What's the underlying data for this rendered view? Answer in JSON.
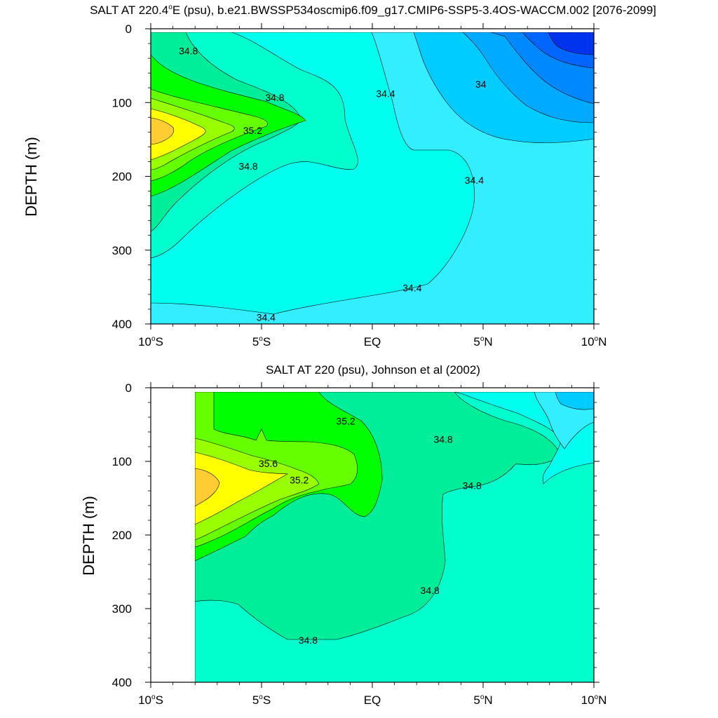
{
  "chart_data": [
    {
      "type": "contour",
      "title_prefix": "SALT AT 220.4",
      "title_sup": "o",
      "title_suffix": "E (psu), b.e21.BWSSP534oscmip6.f09_g17.CMIP6-SSP5-3.4OS-WACCM.002 [2076-2099]",
      "ylabel": "DEPTH (m)",
      "xlabel": "",
      "xlim": [
        -10,
        10
      ],
      "ylim": [
        400,
        0
      ],
      "x_ticks": [
        {
          "value": -10,
          "num": "10",
          "sup": "o",
          "hem": "S"
        },
        {
          "value": -5,
          "num": "5",
          "sup": "o",
          "hem": "S"
        },
        {
          "value": 0,
          "num": "EQ",
          "sup": "",
          "hem": ""
        },
        {
          "value": 5,
          "num": "5",
          "sup": "o",
          "hem": "N"
        },
        {
          "value": 10,
          "num": "10",
          "sup": "o",
          "hem": "N"
        }
      ],
      "y_ticks": [
        "0",
        "100",
        "200",
        "300",
        "400"
      ],
      "y_tick_values": [
        0,
        100,
        200,
        300,
        400
      ],
      "contour_interval": 0.2,
      "fill_colors": {
        "33.2": "#0033ee",
        "33.4": "#0066ff",
        "33.6": "#0088ff",
        "33.8": "#00aaff",
        "34.0": "#00ccff",
        "34.2": "#33eeff",
        "34.4": "#00ffee",
        "34.6": "#00ffcc",
        "34.8": "#00ee99",
        "35.0": "#00ff00",
        "35.2": "#66ff00",
        "35.4": "#99ff00",
        "35.6": "#ffff00",
        "35.8": "#ffcc33"
      },
      "contour_labels": [
        {
          "text": "34.8",
          "x": -8.3,
          "y": 30
        },
        {
          "text": "34.8",
          "x": -4.4,
          "y": 93
        },
        {
          "text": "35.2",
          "x": -5.4,
          "y": 138
        },
        {
          "text": "34.8",
          "x": -5.6,
          "y": 186
        },
        {
          "text": "34.4",
          "x": 0.6,
          "y": 88
        },
        {
          "text": "34",
          "x": 4.9,
          "y": 75
        },
        {
          "text": "34.4",
          "x": 4.6,
          "y": 205
        },
        {
          "text": "34.4",
          "x": 1.8,
          "y": 351
        },
        {
          "text": "34.4",
          "x": -4.8,
          "y": 391
        }
      ]
    },
    {
      "type": "contour",
      "title_prefix": "SALT AT 220 (psu), Johnson et al (2002)",
      "title_sup": "",
      "title_suffix": "",
      "ylabel": "DEPTH (m)",
      "xlabel": "",
      "xlim": [
        -10,
        10
      ],
      "ylim": [
        400,
        0
      ],
      "x_ticks": [
        {
          "value": -10,
          "num": "10",
          "sup": "o",
          "hem": "S"
        },
        {
          "value": -5,
          "num": "5",
          "sup": "o",
          "hem": "S"
        },
        {
          "value": 0,
          "num": "EQ",
          "sup": "",
          "hem": ""
        },
        {
          "value": 5,
          "num": "5",
          "sup": "o",
          "hem": "N"
        },
        {
          "value": 10,
          "num": "10",
          "sup": "o",
          "hem": "N"
        }
      ],
      "y_ticks": [
        "0",
        "100",
        "200",
        "300",
        "400"
      ],
      "y_tick_values": [
        0,
        100,
        200,
        300,
        400
      ],
      "data_x_start": -8,
      "contour_interval": 0.2,
      "fill_colors": {
        "34.2": "#00ccff",
        "34.4": "#33eeff",
        "34.6": "#00ffee",
        "34.8": "#00ee99",
        "35.0": "#00ff00",
        "35.2": "#66ff00",
        "35.4": "#99ff00",
        "35.6": "#ffff00",
        "35.8": "#ffcc33"
      },
      "contour_labels": [
        {
          "text": "35.2",
          "x": -1.2,
          "y": 45
        },
        {
          "text": "35.6",
          "x": -4.7,
          "y": 103
        },
        {
          "text": "35.2",
          "x": -3.3,
          "y": 125
        },
        {
          "text": "34.8",
          "x": 3.2,
          "y": 70
        },
        {
          "text": "34.8",
          "x": 4.5,
          "y": 133
        },
        {
          "text": "34.8",
          "x": 2.6,
          "y": 275
        },
        {
          "text": "34.8",
          "x": -2.9,
          "y": 343
        }
      ]
    }
  ]
}
